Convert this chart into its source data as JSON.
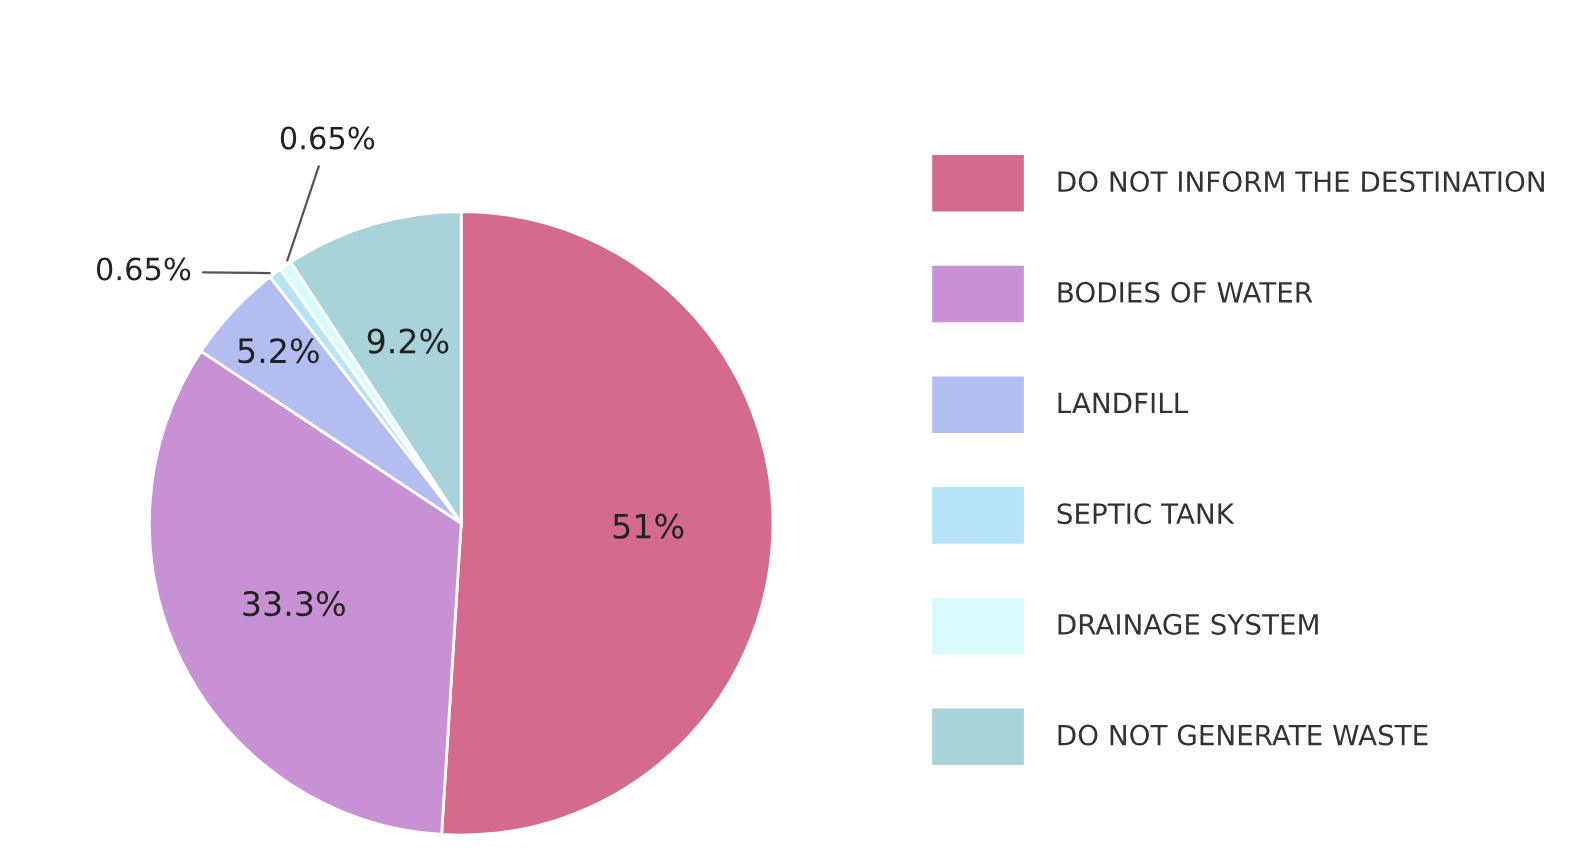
{
  "chart_data": {
    "type": "pie",
    "categories": [
      "DO NOT INFORM THE DESTINATION",
      "BODIES OF WATER",
      "LANDFILL",
      "SEPTIC TANK",
      "DRAINAGE SYSTEM",
      "DO NOT GENERATE WASTE"
    ],
    "values": [
      51,
      33.3,
      5.2,
      0.65,
      0.65,
      9.2
    ],
    "colors": [
      "#d46b8c",
      "#c891d4",
      "#b3bdf2",
      "#b6e3f7",
      "#d9fbfd",
      "#a8d3da"
    ],
    "value_labels": [
      "51%",
      "33.3%",
      "5.2%",
      "0.65%",
      "0.65%",
      "9.2%"
    ],
    "legend": "right"
  }
}
